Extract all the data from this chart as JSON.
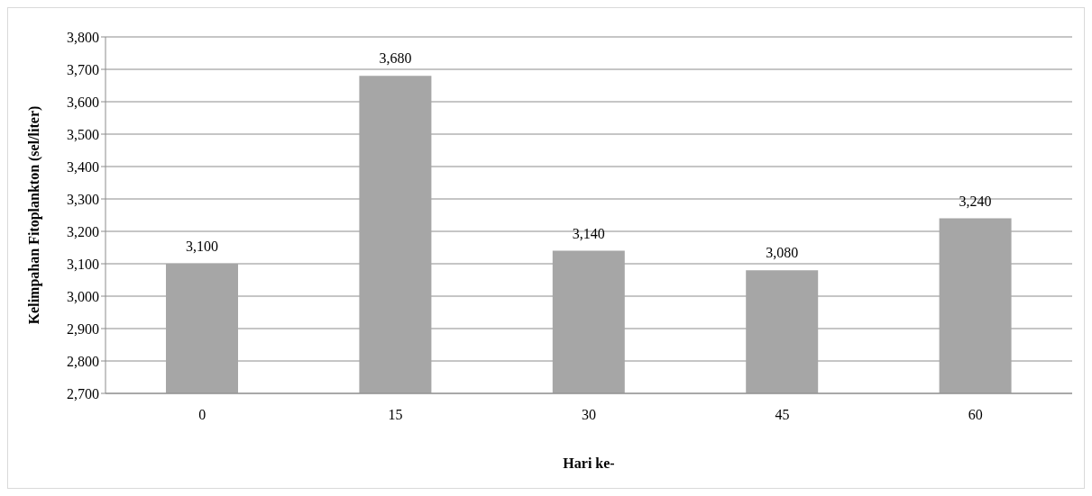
{
  "chart_data": {
    "type": "bar",
    "xlabel": "Hari ke-",
    "ylabel": "Kelimpahan Fitoplankton (sel/liter)",
    "categories": [
      "0",
      "15",
      "30",
      "45",
      "60"
    ],
    "values": [
      3100,
      3680,
      3140,
      3080,
      3240
    ],
    "value_labels": [
      "3,100",
      "3,680",
      "3,140",
      "3,080",
      "3,240"
    ],
    "color": "#a6a6a6",
    "ylim": [
      2700,
      3800
    ],
    "yticks": [
      {
        "value": 2700,
        "label": "2,700"
      },
      {
        "value": 2800,
        "label": "2,800"
      },
      {
        "value": 2900,
        "label": "2,900"
      },
      {
        "value": 3000,
        "label": "3,000"
      },
      {
        "value": 3100,
        "label": "3,100"
      },
      {
        "value": 3200,
        "label": "3,200"
      },
      {
        "value": 3300,
        "label": "3,300"
      },
      {
        "value": 3400,
        "label": "3,400"
      },
      {
        "value": 3500,
        "label": "3,500"
      },
      {
        "value": 3600,
        "label": "3,600"
      },
      {
        "value": 3700,
        "label": "3,700"
      },
      {
        "value": 3800,
        "label": "3,800"
      }
    ],
    "grid": "y"
  }
}
